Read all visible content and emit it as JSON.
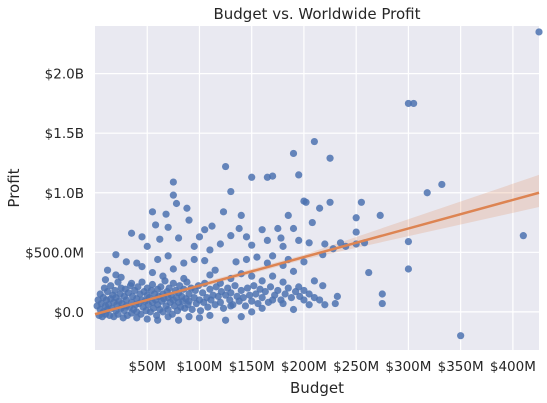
{
  "chart_data": {
    "type": "scatter",
    "title": "Budget vs. Worldwide Profit",
    "xlabel": "Budget",
    "ylabel": "Profit",
    "xlim": [
      0,
      425
    ],
    "ylim": [
      -0.32,
      2.4
    ],
    "x_units": "millions USD",
    "y_units": "billions USD",
    "grid": true,
    "background": "#e9e9f1",
    "grid_color": "#ffffff",
    "point_color": "#4c72b0",
    "line_color": "#dd8452",
    "band_color": "#dd8452",
    "x_ticks": [
      {
        "value": 50,
        "label": "$50M"
      },
      {
        "value": 100,
        "label": "$100M"
      },
      {
        "value": 150,
        "label": "$150M"
      },
      {
        "value": 200,
        "label": "$200M"
      },
      {
        "value": 250,
        "label": "$250M"
      },
      {
        "value": 300,
        "label": "$300M"
      },
      {
        "value": 350,
        "label": "$350M"
      },
      {
        "value": 400,
        "label": "$400M"
      }
    ],
    "y_ticks": [
      {
        "value": 0,
        "label": "$0.0"
      },
      {
        "value": 0.5,
        "label": "$500.0M"
      },
      {
        "value": 1.0,
        "label": "$1.0B"
      },
      {
        "value": 1.5,
        "label": "$1.5B"
      },
      {
        "value": 2.0,
        "label": "$2.0B"
      }
    ],
    "regression": {
      "x": [
        0,
        425
      ],
      "y": [
        -0.02,
        1.0
      ],
      "ci_low_end": 0.88,
      "ci_high_end": 1.15
    },
    "points": [
      [
        425,
        2.35
      ],
      [
        300,
        1.75
      ],
      [
        305,
        1.75
      ],
      [
        332,
        1.07
      ],
      [
        318,
        1.0
      ],
      [
        410,
        0.64
      ],
      [
        300,
        0.59
      ],
      [
        300,
        0.36
      ],
      [
        262,
        0.33
      ],
      [
        350,
        -0.2
      ],
      [
        275,
        0.15
      ],
      [
        275,
        0.07
      ],
      [
        273,
        0.81
      ],
      [
        250,
        0.79
      ],
      [
        250,
        0.67
      ],
      [
        250,
        0.57
      ],
      [
        258,
        0.58
      ],
      [
        190,
        1.33
      ],
      [
        210,
        1.43
      ],
      [
        225,
        1.29
      ],
      [
        125,
        1.22
      ],
      [
        75,
        1.09
      ],
      [
        150,
        1.13
      ],
      [
        165,
        1.13
      ],
      [
        170,
        1.14
      ],
      [
        195,
        1.15
      ],
      [
        130,
        1.01
      ],
      [
        75,
        0.98
      ],
      [
        88,
        0.87
      ],
      [
        78,
        0.91
      ],
      [
        123,
        0.84
      ],
      [
        140,
        0.81
      ],
      [
        185,
        0.81
      ],
      [
        202,
        0.92
      ],
      [
        215,
        0.87
      ],
      [
        200,
        0.93
      ],
      [
        225,
        0.92
      ],
      [
        255,
        0.92
      ],
      [
        55,
        0.84
      ],
      [
        68,
        0.82
      ],
      [
        45,
        0.63
      ],
      [
        58,
        0.73
      ],
      [
        70,
        0.71
      ],
      [
        90,
        0.77
      ],
      [
        105,
        0.69
      ],
      [
        112,
        0.72
      ],
      [
        138,
        0.7
      ],
      [
        160,
        0.69
      ],
      [
        175,
        0.7
      ],
      [
        190,
        0.7
      ],
      [
        208,
        0.75
      ],
      [
        35,
        0.66
      ],
      [
        20,
        0.48
      ],
      [
        50,
        0.55
      ],
      [
        62,
        0.61
      ],
      [
        80,
        0.62
      ],
      [
        95,
        0.55
      ],
      [
        100,
        0.63
      ],
      [
        110,
        0.52
      ],
      [
        120,
        0.57
      ],
      [
        130,
        0.64
      ],
      [
        145,
        0.63
      ],
      [
        150,
        0.56
      ],
      [
        165,
        0.6
      ],
      [
        178,
        0.62
      ],
      [
        180,
        0.55
      ],
      [
        195,
        0.6
      ],
      [
        205,
        0.58
      ],
      [
        220,
        0.57
      ],
      [
        235,
        0.58
      ],
      [
        218,
        0.48
      ],
      [
        228,
        0.53
      ],
      [
        240,
        0.55
      ],
      [
        180,
        0.39
      ],
      [
        200,
        0.42
      ],
      [
        230,
        0.07
      ],
      [
        232,
        0.13
      ],
      [
        215,
        0.1
      ],
      [
        220,
        0.06
      ],
      [
        200,
        0.18
      ],
      [
        205,
        0.06
      ],
      [
        190,
        0.02
      ],
      [
        180,
        0.07
      ],
      [
        170,
        0.1
      ],
      [
        160,
        0.03
      ],
      [
        150,
        0.0
      ],
      [
        140,
        -0.04
      ],
      [
        130,
        0.05
      ],
      [
        125,
        -0.07
      ],
      [
        110,
        -0.03
      ],
      [
        100,
        -0.05
      ],
      [
        90,
        -0.04
      ],
      [
        80,
        -0.07
      ],
      [
        70,
        -0.04
      ],
      [
        60,
        -0.07
      ],
      [
        50,
        -0.06
      ],
      [
        40,
        -0.05
      ],
      [
        10,
        0.27
      ],
      [
        20,
        0.31
      ],
      [
        30,
        0.42
      ],
      [
        40,
        0.41
      ],
      [
        45,
        0.38
      ],
      [
        60,
        0.44
      ],
      [
        70,
        0.47
      ],
      [
        85,
        0.41
      ],
      [
        95,
        0.44
      ],
      [
        105,
        0.43
      ],
      [
        115,
        0.35
      ],
      [
        135,
        0.42
      ],
      [
        145,
        0.44
      ],
      [
        155,
        0.46
      ],
      [
        165,
        0.41
      ],
      [
        170,
        0.47
      ],
      [
        185,
        0.44
      ],
      [
        12,
        0.35
      ],
      [
        25,
        0.29
      ],
      [
        35,
        0.24
      ],
      [
        55,
        0.33
      ],
      [
        65,
        0.3
      ],
      [
        75,
        0.36
      ],
      [
        85,
        0.28
      ],
      [
        110,
        0.31
      ],
      [
        120,
        0.24
      ],
      [
        130,
        0.28
      ],
      [
        140,
        0.32
      ],
      [
        150,
        0.3
      ],
      [
        160,
        0.26
      ],
      [
        170,
        0.3
      ],
      [
        180,
        0.25
      ],
      [
        190,
        0.34
      ],
      [
        195,
        0.21
      ],
      [
        210,
        0.26
      ],
      [
        218,
        0.22
      ]
    ],
    "cluster_points": [
      [
        2,
        0.05
      ],
      [
        3,
        0.1
      ],
      [
        4,
        -0.03
      ],
      [
        5,
        0.15
      ],
      [
        5,
        0.02
      ],
      [
        6,
        0.07
      ],
      [
        7,
        -0.04
      ],
      [
        8,
        0.12
      ],
      [
        8,
        0.0
      ],
      [
        9,
        0.2
      ],
      [
        10,
        0.05
      ],
      [
        10,
        -0.02
      ],
      [
        11,
        0.1
      ],
      [
        12,
        0.17
      ],
      [
        12,
        0.02
      ],
      [
        13,
        0.06
      ],
      [
        14,
        -0.03
      ],
      [
        15,
        0.22
      ],
      [
        15,
        0.11
      ],
      [
        16,
        0.03
      ],
      [
        17,
        0.14
      ],
      [
        18,
        -0.04
      ],
      [
        18,
        0.08
      ],
      [
        19,
        0.18
      ],
      [
        20,
        0.01
      ],
      [
        20,
        0.12
      ],
      [
        21,
        0.06
      ],
      [
        22,
        0.25
      ],
      [
        22,
        -0.02
      ],
      [
        23,
        0.09
      ],
      [
        24,
        0.15
      ],
      [
        25,
        0.03
      ],
      [
        25,
        0.2
      ],
      [
        26,
        0.07
      ],
      [
        27,
        -0.05
      ],
      [
        28,
        0.13
      ],
      [
        28,
        0.01
      ],
      [
        29,
        0.19
      ],
      [
        30,
        0.05
      ],
      [
        30,
        0.1
      ],
      [
        31,
        -0.03
      ],
      [
        32,
        0.16
      ],
      [
        33,
        0.04
      ],
      [
        34,
        0.22
      ],
      [
        35,
        0.08
      ],
      [
        35,
        -0.01
      ],
      [
        36,
        0.13
      ],
      [
        37,
        0.02
      ],
      [
        38,
        0.18
      ],
      [
        39,
        0.06
      ],
      [
        40,
        0.11
      ],
      [
        40,
        0.0
      ],
      [
        41,
        0.21
      ],
      [
        42,
        0.07
      ],
      [
        43,
        0.15
      ],
      [
        44,
        -0.02
      ],
      [
        45,
        0.1
      ],
      [
        45,
        0.25
      ],
      [
        46,
        0.04
      ],
      [
        47,
        0.17
      ],
      [
        48,
        0.09
      ],
      [
        49,
        0.01
      ],
      [
        50,
        0.14
      ],
      [
        50,
        0.2
      ],
      [
        51,
        0.06
      ],
      [
        52,
        0.12
      ],
      [
        53,
        0.0
      ],
      [
        54,
        0.18
      ],
      [
        55,
        0.08
      ],
      [
        55,
        0.23
      ],
      [
        56,
        0.03
      ],
      [
        57,
        0.15
      ],
      [
        58,
        0.1
      ],
      [
        59,
        -0.03
      ],
      [
        60,
        0.19
      ],
      [
        60,
        0.06
      ],
      [
        61,
        0.13
      ],
      [
        62,
        0.02
      ],
      [
        63,
        0.21
      ],
      [
        64,
        0.09
      ],
      [
        65,
        0.15
      ],
      [
        65,
        0.0
      ],
      [
        66,
        0.11
      ],
      [
        67,
        0.26
      ],
      [
        68,
        0.05
      ],
      [
        69,
        0.17
      ],
      [
        70,
        0.12
      ],
      [
        70,
        0.02
      ],
      [
        71,
        0.2
      ],
      [
        72,
        0.08
      ],
      [
        73,
        0.14
      ],
      [
        74,
        -0.02
      ],
      [
        75,
        0.1
      ],
      [
        75,
        0.24
      ],
      [
        76,
        0.05
      ],
      [
        77,
        0.18
      ],
      [
        78,
        0.12
      ],
      [
        79,
        0.01
      ],
      [
        80,
        0.16
      ],
      [
        80,
        0.08
      ],
      [
        81,
        0.22
      ],
      [
        82,
        0.04
      ],
      [
        83,
        0.13
      ],
      [
        84,
        0.09
      ],
      [
        85,
        0.19
      ],
      [
        86,
        0.03
      ],
      [
        87,
        0.11
      ],
      [
        88,
        0.25
      ],
      [
        89,
        0.06
      ],
      [
        90,
        0.15
      ],
      [
        90,
        0.09
      ],
      [
        92,
        0.2
      ],
      [
        93,
        0.02
      ],
      [
        95,
        0.12
      ],
      [
        96,
        0.18
      ],
      [
        97,
        0.07
      ],
      [
        99,
        0.22
      ],
      [
        100,
        0.1
      ],
      [
        101,
        0.01
      ],
      [
        103,
        0.16
      ],
      [
        104,
        0.08
      ],
      [
        105,
        0.24
      ],
      [
        107,
        0.12
      ],
      [
        108,
        0.04
      ],
      [
        110,
        0.19
      ],
      [
        111,
        0.1
      ],
      [
        113,
        0.14
      ],
      [
        115,
        0.06
      ],
      [
        116,
        0.21
      ],
      [
        118,
        0.13
      ],
      [
        120,
        0.08
      ],
      [
        121,
        0.17
      ],
      [
        123,
        0.03
      ],
      [
        125,
        0.14
      ],
      [
        127,
        0.2
      ],
      [
        129,
        0.1
      ],
      [
        130,
        0.16
      ],
      [
        132,
        0.06
      ],
      [
        134,
        0.22
      ],
      [
        136,
        0.13
      ],
      [
        138,
        0.09
      ],
      [
        140,
        0.18
      ],
      [
        142,
        0.12
      ],
      [
        144,
        0.05
      ],
      [
        146,
        0.2
      ],
      [
        148,
        0.14
      ],
      [
        150,
        0.09
      ],
      [
        152,
        0.22
      ],
      [
        154,
        0.15
      ],
      [
        156,
        0.07
      ],
      [
        158,
        0.19
      ],
      [
        160,
        0.12
      ],
      [
        163,
        0.17
      ],
      [
        166,
        0.08
      ],
      [
        168,
        0.21
      ],
      [
        172,
        0.14
      ],
      [
        175,
        0.18
      ],
      [
        178,
        0.1
      ],
      [
        182,
        0.15
      ],
      [
        185,
        0.2
      ],
      [
        188,
        0.12
      ],
      [
        192,
        0.17
      ],
      [
        196,
        0.13
      ],
      [
        200,
        0.1
      ],
      [
        205,
        0.15
      ],
      [
        210,
        0.12
      ]
    ]
  }
}
